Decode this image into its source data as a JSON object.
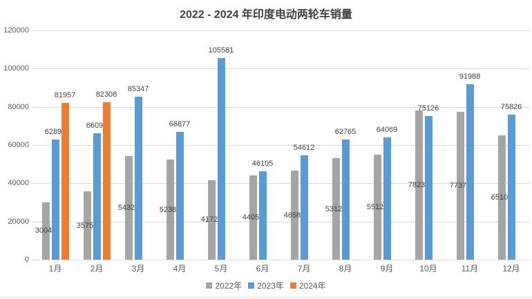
{
  "chart_data": {
    "type": "bar",
    "title": "2022 - 2024 年印度电动两轮车销量",
    "categories": [
      "1月",
      "2月",
      "3月",
      "4月",
      "5月",
      "6月",
      "7月",
      "8月",
      "9月",
      "10月",
      "11月",
      "12月"
    ],
    "series": [
      {
        "name": "2022年",
        "color": "#A5A5A5",
        "label_position": "inside-center",
        "values": [
          30041,
          35759,
          54320,
          52389,
          41727,
          44054,
          46584,
          53129,
          55124,
          78236,
          77376,
          65106
        ]
      },
      {
        "name": "2023年",
        "color": "#5B9BD5",
        "label_position": "outside-end",
        "values": [
          62891,
          66092,
          85347,
          66877,
          105581,
          46105,
          54612,
          62765,
          64069,
          75126,
          91988,
          75826
        ]
      },
      {
        "name": "2024年",
        "color": "#ED7D31",
        "label_position": "outside-end",
        "values": [
          81957,
          82308,
          null,
          null,
          null,
          null,
          null,
          null,
          null,
          null,
          null,
          null
        ]
      }
    ],
    "xlabel": "",
    "ylabel": "",
    "ylim": [
      0,
      120000
    ],
    "yticks": [
      0,
      20000,
      40000,
      60000,
      80000,
      100000,
      120000
    ],
    "grid": true,
    "legend_position": "bottom",
    "styles": {
      "background": "#ffffff",
      "grid_color": "#d9d9d9",
      "axis_label_color": "#595959",
      "value_label_color": "#404040",
      "title_color": "#404040",
      "divider_color": "#dcdfe2"
    }
  }
}
